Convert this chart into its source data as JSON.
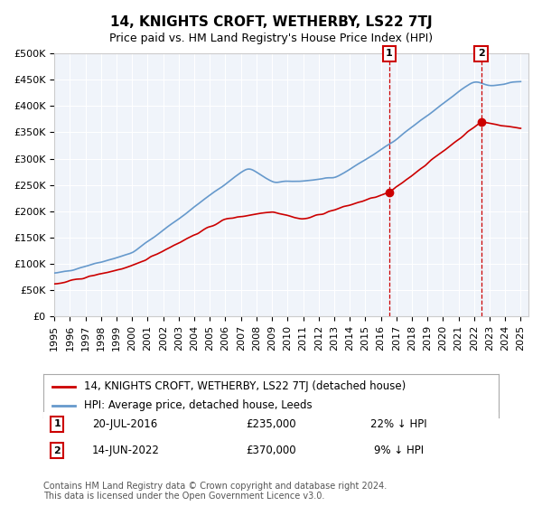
{
  "title": "14, KNIGHTS CROFT, WETHERBY, LS22 7TJ",
  "subtitle": "Price paid vs. HM Land Registry's House Price Index (HPI)",
  "ylabel": "",
  "ylim": [
    0,
    500000
  ],
  "yticks": [
    0,
    50000,
    100000,
    150000,
    200000,
    250000,
    300000,
    350000,
    400000,
    450000,
    500000
  ],
  "ytick_labels": [
    "£0",
    "£50K",
    "£100K",
    "£150K",
    "£200K",
    "£250K",
    "£300K",
    "£350K",
    "£400K",
    "£450K",
    "£500K"
  ],
  "xlim_start": 1995.0,
  "xlim_end": 2025.5,
  "sale1_x": 2016.55,
  "sale1_y": 235000,
  "sale1_label": "1",
  "sale1_date": "20-JUL-2016",
  "sale1_price": "£235,000",
  "sale1_hpi": "22% ↓ HPI",
  "sale2_x": 2022.45,
  "sale2_y": 370000,
  "sale2_label": "2",
  "sale2_date": "14-JUN-2022",
  "sale2_price": "£370,000",
  "sale2_hpi": "9% ↓ HPI",
  "red_line_color": "#cc0000",
  "blue_line_color": "#6699cc",
  "marker_color": "#cc0000",
  "dashed_line_color": "#cc0000",
  "legend_label_red": "14, KNIGHTS CROFT, WETHERBY, LS22 7TJ (detached house)",
  "legend_label_blue": "HPI: Average price, detached house, Leeds",
  "footnote": "Contains HM Land Registry data © Crown copyright and database right 2024.\nThis data is licensed under the Open Government Licence v3.0.",
  "background_color": "#ffffff",
  "plot_bg_color": "#f0f4fa",
  "grid_color": "#ffffff",
  "title_fontsize": 11,
  "subtitle_fontsize": 9,
  "tick_fontsize": 8,
  "legend_fontsize": 8.5,
  "footnote_fontsize": 7
}
